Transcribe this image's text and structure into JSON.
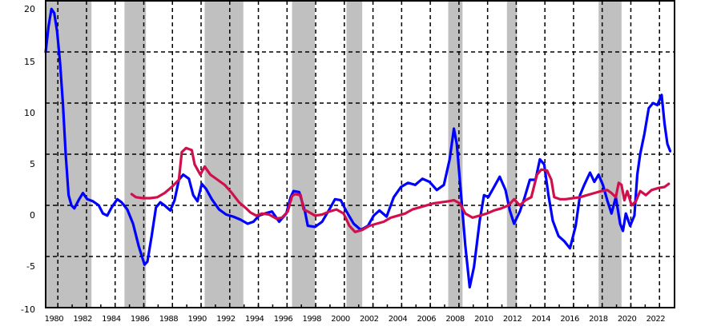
{
  "chart_data": {
    "type": "line",
    "title": "",
    "xlabel": "",
    "ylabel": "",
    "xlim": [
      1979.7,
      2023.6
    ],
    "ylim": [
      -10,
      20
    ],
    "grid": true,
    "legend": null,
    "y_ticks": [
      "20",
      "15",
      "10",
      "5",
      "0",
      "-5",
      "-10"
    ],
    "y_tick_values": [
      20,
      15,
      10,
      5,
      0,
      -5,
      -10
    ],
    "x_ticks": [
      "1980",
      "1982",
      "1984",
      "1986",
      "1988",
      "1990",
      "1992",
      "1994",
      "1996",
      "1998",
      "2000",
      "2002",
      "2004",
      "2006",
      "2008",
      "2010",
      "2012",
      "2014",
      "2016",
      "2018",
      "2020",
      "2022"
    ],
    "x_tick_values": [
      1980,
      1982,
      1984,
      1986,
      1988,
      1990,
      1992,
      1994,
      1996,
      1998,
      2000,
      2002,
      2004,
      2006,
      2008,
      2010,
      2012,
      2014,
      2016,
      2018,
      2020,
      2022
    ],
    "shaded_regions": [
      {
        "start": 1979.7,
        "end": 1982.9
      },
      {
        "start": 1985.2,
        "end": 1986.7
      },
      {
        "start": 1990.8,
        "end": 1993.5
      },
      {
        "start": 1996.9,
        "end": 1998.5
      },
      {
        "start": 2000.7,
        "end": 2001.8
      },
      {
        "start": 2007.8,
        "end": 2008.8
      },
      {
        "start": 2011.9,
        "end": 2012.6
      },
      {
        "start": 2018.3,
        "end": 2019.9
      }
    ],
    "shade_color": "#c0c0c0",
    "series": [
      {
        "name": "blue",
        "color": "#0000ff",
        "points": [
          [
            1979.7,
            15.0
          ],
          [
            1979.9,
            17.5
          ],
          [
            1980.1,
            19.2
          ],
          [
            1980.3,
            18.8
          ],
          [
            1980.5,
            17.0
          ],
          [
            1980.7,
            14.0
          ],
          [
            1980.9,
            10.0
          ],
          [
            1981.1,
            5.0
          ],
          [
            1981.3,
            1.0
          ],
          [
            1981.5,
            0.0
          ],
          [
            1981.7,
            -0.3
          ],
          [
            1982.0,
            0.5
          ],
          [
            1982.3,
            1.2
          ],
          [
            1982.6,
            0.6
          ],
          [
            1983.0,
            0.4
          ],
          [
            1983.4,
            0.0
          ],
          [
            1983.7,
            -0.8
          ],
          [
            1984.0,
            -1.0
          ],
          [
            1984.3,
            -0.2
          ],
          [
            1984.7,
            0.6
          ],
          [
            1985.0,
            0.3
          ],
          [
            1985.4,
            -0.4
          ],
          [
            1985.8,
            -1.8
          ],
          [
            1986.2,
            -4.0
          ],
          [
            1986.6,
            -5.8
          ],
          [
            1986.8,
            -5.5
          ],
          [
            1987.1,
            -3.0
          ],
          [
            1987.4,
            -0.2
          ],
          [
            1987.7,
            0.3
          ],
          [
            1988.0,
            0.0
          ],
          [
            1988.4,
            -0.5
          ],
          [
            1988.7,
            0.5
          ],
          [
            1989.0,
            2.5
          ],
          [
            1989.3,
            3.0
          ],
          [
            1989.7,
            2.6
          ],
          [
            1990.0,
            1.0
          ],
          [
            1990.3,
            0.4
          ],
          [
            1990.6,
            2.1
          ],
          [
            1990.9,
            1.6
          ],
          [
            1991.3,
            0.6
          ],
          [
            1991.8,
            -0.4
          ],
          [
            1992.3,
            -0.9
          ],
          [
            1992.8,
            -1.1
          ],
          [
            1993.3,
            -1.4
          ],
          [
            1993.8,
            -1.8
          ],
          [
            1994.2,
            -1.6
          ],
          [
            1994.6,
            -1.0
          ],
          [
            1995.0,
            -0.8
          ],
          [
            1995.5,
            -0.6
          ],
          [
            1996.0,
            -1.6
          ],
          [
            1996.5,
            -0.8
          ],
          [
            1996.8,
            0.8
          ],
          [
            1997.0,
            1.4
          ],
          [
            1997.4,
            1.3
          ],
          [
            1997.8,
            -0.6
          ],
          [
            1998.0,
            -2.0
          ],
          [
            1998.5,
            -2.1
          ],
          [
            1999.0,
            -1.6
          ],
          [
            1999.5,
            -0.4
          ],
          [
            1999.9,
            0.6
          ],
          [
            2000.3,
            0.5
          ],
          [
            2000.7,
            -0.6
          ],
          [
            2001.2,
            -1.8
          ],
          [
            2001.7,
            -2.4
          ],
          [
            2002.2,
            -2.0
          ],
          [
            2002.6,
            -1.0
          ],
          [
            2003.0,
            -0.5
          ],
          [
            2003.5,
            -1.1
          ],
          [
            2004.0,
            0.8
          ],
          [
            2004.5,
            1.8
          ],
          [
            2005.0,
            2.2
          ],
          [
            2005.5,
            2.0
          ],
          [
            2006.0,
            2.6
          ],
          [
            2006.5,
            2.3
          ],
          [
            2007.0,
            1.5
          ],
          [
            2007.5,
            2.0
          ],
          [
            2007.9,
            4.5
          ],
          [
            2008.2,
            7.5
          ],
          [
            2008.4,
            6.0
          ],
          [
            2008.7,
            1.0
          ],
          [
            2009.0,
            -4.0
          ],
          [
            2009.3,
            -8.0
          ],
          [
            2009.6,
            -6.0
          ],
          [
            2010.0,
            -1.5
          ],
          [
            2010.3,
            1.0
          ],
          [
            2010.6,
            0.8
          ],
          [
            2011.0,
            1.8
          ],
          [
            2011.4,
            2.8
          ],
          [
            2011.8,
            1.5
          ],
          [
            2012.1,
            -0.5
          ],
          [
            2012.4,
            -1.8
          ],
          [
            2012.8,
            -0.6
          ],
          [
            2013.1,
            0.6
          ],
          [
            2013.5,
            2.5
          ],
          [
            2013.9,
            2.5
          ],
          [
            2014.2,
            4.5
          ],
          [
            2014.5,
            4.0
          ],
          [
            2014.8,
            1.0
          ],
          [
            2015.1,
            -1.5
          ],
          [
            2015.5,
            -3.0
          ],
          [
            2015.9,
            -3.5
          ],
          [
            2016.3,
            -4.2
          ],
          [
            2016.7,
            -2.0
          ],
          [
            2017.0,
            1.0
          ],
          [
            2017.3,
            2.0
          ],
          [
            2017.7,
            3.2
          ],
          [
            2018.0,
            2.3
          ],
          [
            2018.3,
            3.0
          ],
          [
            2018.6,
            2.0
          ],
          [
            2018.9,
            0.5
          ],
          [
            2019.2,
            -0.8
          ],
          [
            2019.5,
            0.8
          ],
          [
            2019.8,
            -1.8
          ],
          [
            2020.0,
            -2.5
          ],
          [
            2020.2,
            -0.8
          ],
          [
            2020.5,
            -2.0
          ],
          [
            2020.8,
            -1.0
          ],
          [
            2021.0,
            3.0
          ],
          [
            2021.2,
            5.0
          ],
          [
            2021.5,
            7.0
          ],
          [
            2021.8,
            9.5
          ],
          [
            2022.1,
            10.0
          ],
          [
            2022.4,
            9.8
          ],
          [
            2022.7,
            10.8
          ],
          [
            2022.9,
            8.0
          ],
          [
            2023.1,
            6.0
          ],
          [
            2023.3,
            5.3
          ]
        ]
      },
      {
        "name": "crimson",
        "color": "#d0104c",
        "points": [
          [
            1985.7,
            1.1
          ],
          [
            1986.0,
            0.8
          ],
          [
            1986.5,
            0.7
          ],
          [
            1987.0,
            0.7
          ],
          [
            1987.5,
            0.8
          ],
          [
            1988.0,
            1.2
          ],
          [
            1988.5,
            1.8
          ],
          [
            1989.0,
            2.5
          ],
          [
            1989.2,
            5.2
          ],
          [
            1989.5,
            5.6
          ],
          [
            1989.9,
            5.4
          ],
          [
            1990.1,
            4.0
          ],
          [
            1990.5,
            3.0
          ],
          [
            1990.8,
            3.8
          ],
          [
            1991.2,
            3.0
          ],
          [
            1991.7,
            2.5
          ],
          [
            1992.2,
            2.0
          ],
          [
            1992.7,
            1.2
          ],
          [
            1993.2,
            0.3
          ],
          [
            1993.7,
            -0.3
          ],
          [
            1994.0,
            -0.7
          ],
          [
            1994.4,
            -1.0
          ],
          [
            1994.8,
            -0.8
          ],
          [
            1995.3,
            -0.9
          ],
          [
            1995.8,
            -1.3
          ],
          [
            1996.2,
            -1.2
          ],
          [
            1996.6,
            -0.6
          ],
          [
            1996.9,
            0.9
          ],
          [
            1997.1,
            1.1
          ],
          [
            1997.5,
            1.0
          ],
          [
            1997.7,
            -0.4
          ],
          [
            1998.0,
            -0.6
          ],
          [
            1998.5,
            -1.0
          ],
          [
            1999.0,
            -0.9
          ],
          [
            1999.5,
            -0.6
          ],
          [
            2000.0,
            -0.4
          ],
          [
            2000.5,
            -0.8
          ],
          [
            2000.9,
            -2.0
          ],
          [
            2001.3,
            -2.6
          ],
          [
            2001.8,
            -2.4
          ],
          [
            2002.3,
            -2.0
          ],
          [
            2002.8,
            -1.8
          ],
          [
            2003.3,
            -1.6
          ],
          [
            2003.8,
            -1.2
          ],
          [
            2004.3,
            -1.0
          ],
          [
            2004.8,
            -0.8
          ],
          [
            2005.3,
            -0.4
          ],
          [
            2005.8,
            -0.2
          ],
          [
            2006.3,
            0.0
          ],
          [
            2006.8,
            0.2
          ],
          [
            2007.3,
            0.3
          ],
          [
            2007.8,
            0.4
          ],
          [
            2008.2,
            0.5
          ],
          [
            2008.6,
            0.2
          ],
          [
            2009.0,
            -0.8
          ],
          [
            2009.5,
            -1.2
          ],
          [
            2010.0,
            -1.0
          ],
          [
            2010.5,
            -0.8
          ],
          [
            2011.0,
            -0.5
          ],
          [
            2011.5,
            -0.3
          ],
          [
            2012.0,
            0.0
          ],
          [
            2012.4,
            0.6
          ],
          [
            2012.8,
            0.0
          ],
          [
            2013.2,
            0.5
          ],
          [
            2013.6,
            0.8
          ],
          [
            2014.0,
            3.0
          ],
          [
            2014.3,
            3.5
          ],
          [
            2014.7,
            3.4
          ],
          [
            2015.0,
            2.5
          ],
          [
            2015.2,
            0.8
          ],
          [
            2015.6,
            0.6
          ],
          [
            2016.0,
            0.6
          ],
          [
            2016.5,
            0.7
          ],
          [
            2017.0,
            0.8
          ],
          [
            2017.5,
            1.0
          ],
          [
            2018.0,
            1.2
          ],
          [
            2018.5,
            1.4
          ],
          [
            2018.9,
            1.5
          ],
          [
            2019.2,
            1.2
          ],
          [
            2019.5,
            0.8
          ],
          [
            2019.7,
            2.2
          ],
          [
            2019.9,
            2.0
          ],
          [
            2020.1,
            0.5
          ],
          [
            2020.3,
            1.4
          ],
          [
            2020.6,
            0.0
          ],
          [
            2020.9,
            0.4
          ],
          [
            2021.2,
            1.4
          ],
          [
            2021.6,
            1.0
          ],
          [
            2022.0,
            1.5
          ],
          [
            2022.5,
            1.7
          ],
          [
            2022.9,
            1.8
          ],
          [
            2023.2,
            2.1
          ]
        ]
      }
    ]
  }
}
